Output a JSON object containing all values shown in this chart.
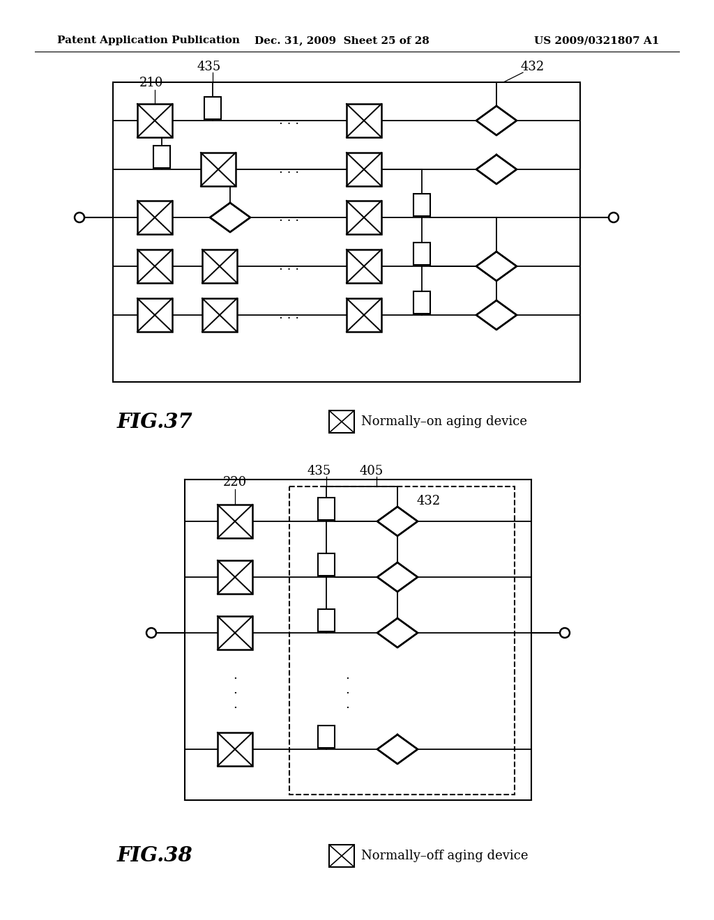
{
  "header_left": "Patent Application Publication",
  "header_mid": "Dec. 31, 2009  Sheet 25 of 28",
  "header_right": "US 2009/0321807 A1",
  "fig37_label": "FIG.37",
  "fig38_label": "FIG.38",
  "legend1_text": "Normally–on aging device",
  "legend2_text": "Normally–off aging device",
  "bg_color": "#ffffff",
  "line_color": "#000000"
}
